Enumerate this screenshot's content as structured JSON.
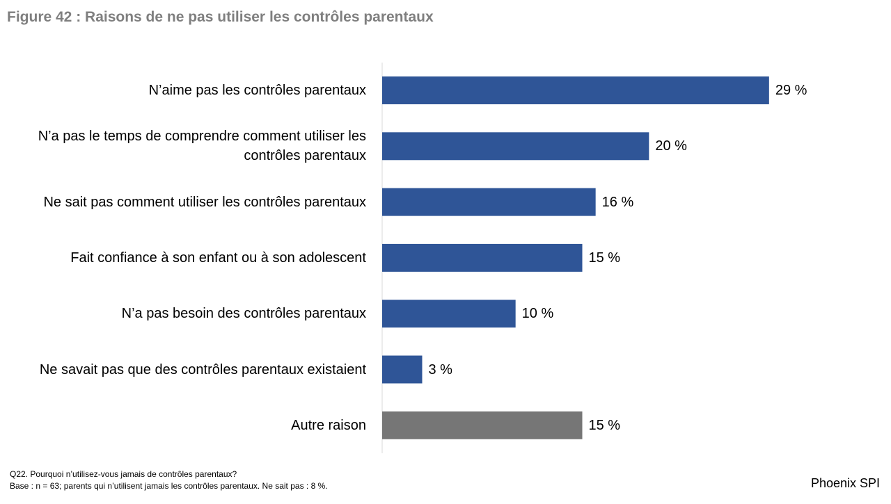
{
  "title": "Figure 42 : Raisons de ne pas utiliser les contrôles parentaux",
  "chart_data": {
    "type": "bar",
    "orientation": "horizontal",
    "categories": [
      "N’aime pas les contrôles parentaux",
      "N’a pas le temps de comprendre comment utiliser les contrôles parentaux",
      "Ne sait pas comment utiliser les contrôles parentaux",
      "Fait confiance à son enfant ou à son adolescent",
      "N’a pas besoin des contrôles parentaux",
      "Ne savait pas que des contrôles parentaux existaient",
      "Autre raison"
    ],
    "values": [
      29,
      20,
      16,
      15,
      10,
      3,
      15
    ],
    "value_labels": [
      "29 %",
      "20 %",
      "16 %",
      "15 %",
      "10 %",
      "3 %",
      "15 %"
    ],
    "bar_colors": [
      "#2f5597",
      "#2f5597",
      "#2f5597",
      "#2f5597",
      "#2f5597",
      "#2f5597",
      "#767676"
    ],
    "xlim": [
      0,
      36
    ],
    "grid": false,
    "title": "Figure 42 : Raisons de ne pas utiliser les contrôles parentaux"
  },
  "footnote": {
    "question": "Q22. Pourquoi n’utilisez-vous jamais de contrôles parentaux?",
    "base": "Base : n = 63; parents qui n’utilisent jamais les contrôles parentaux. Ne sait pas : 8 %."
  },
  "brand": "Phoenix SPI",
  "colors": {
    "primary_bar": "#2f5597",
    "other_bar": "#767676",
    "axis": "#d9d9d9",
    "title": "#7f7f7f"
  }
}
